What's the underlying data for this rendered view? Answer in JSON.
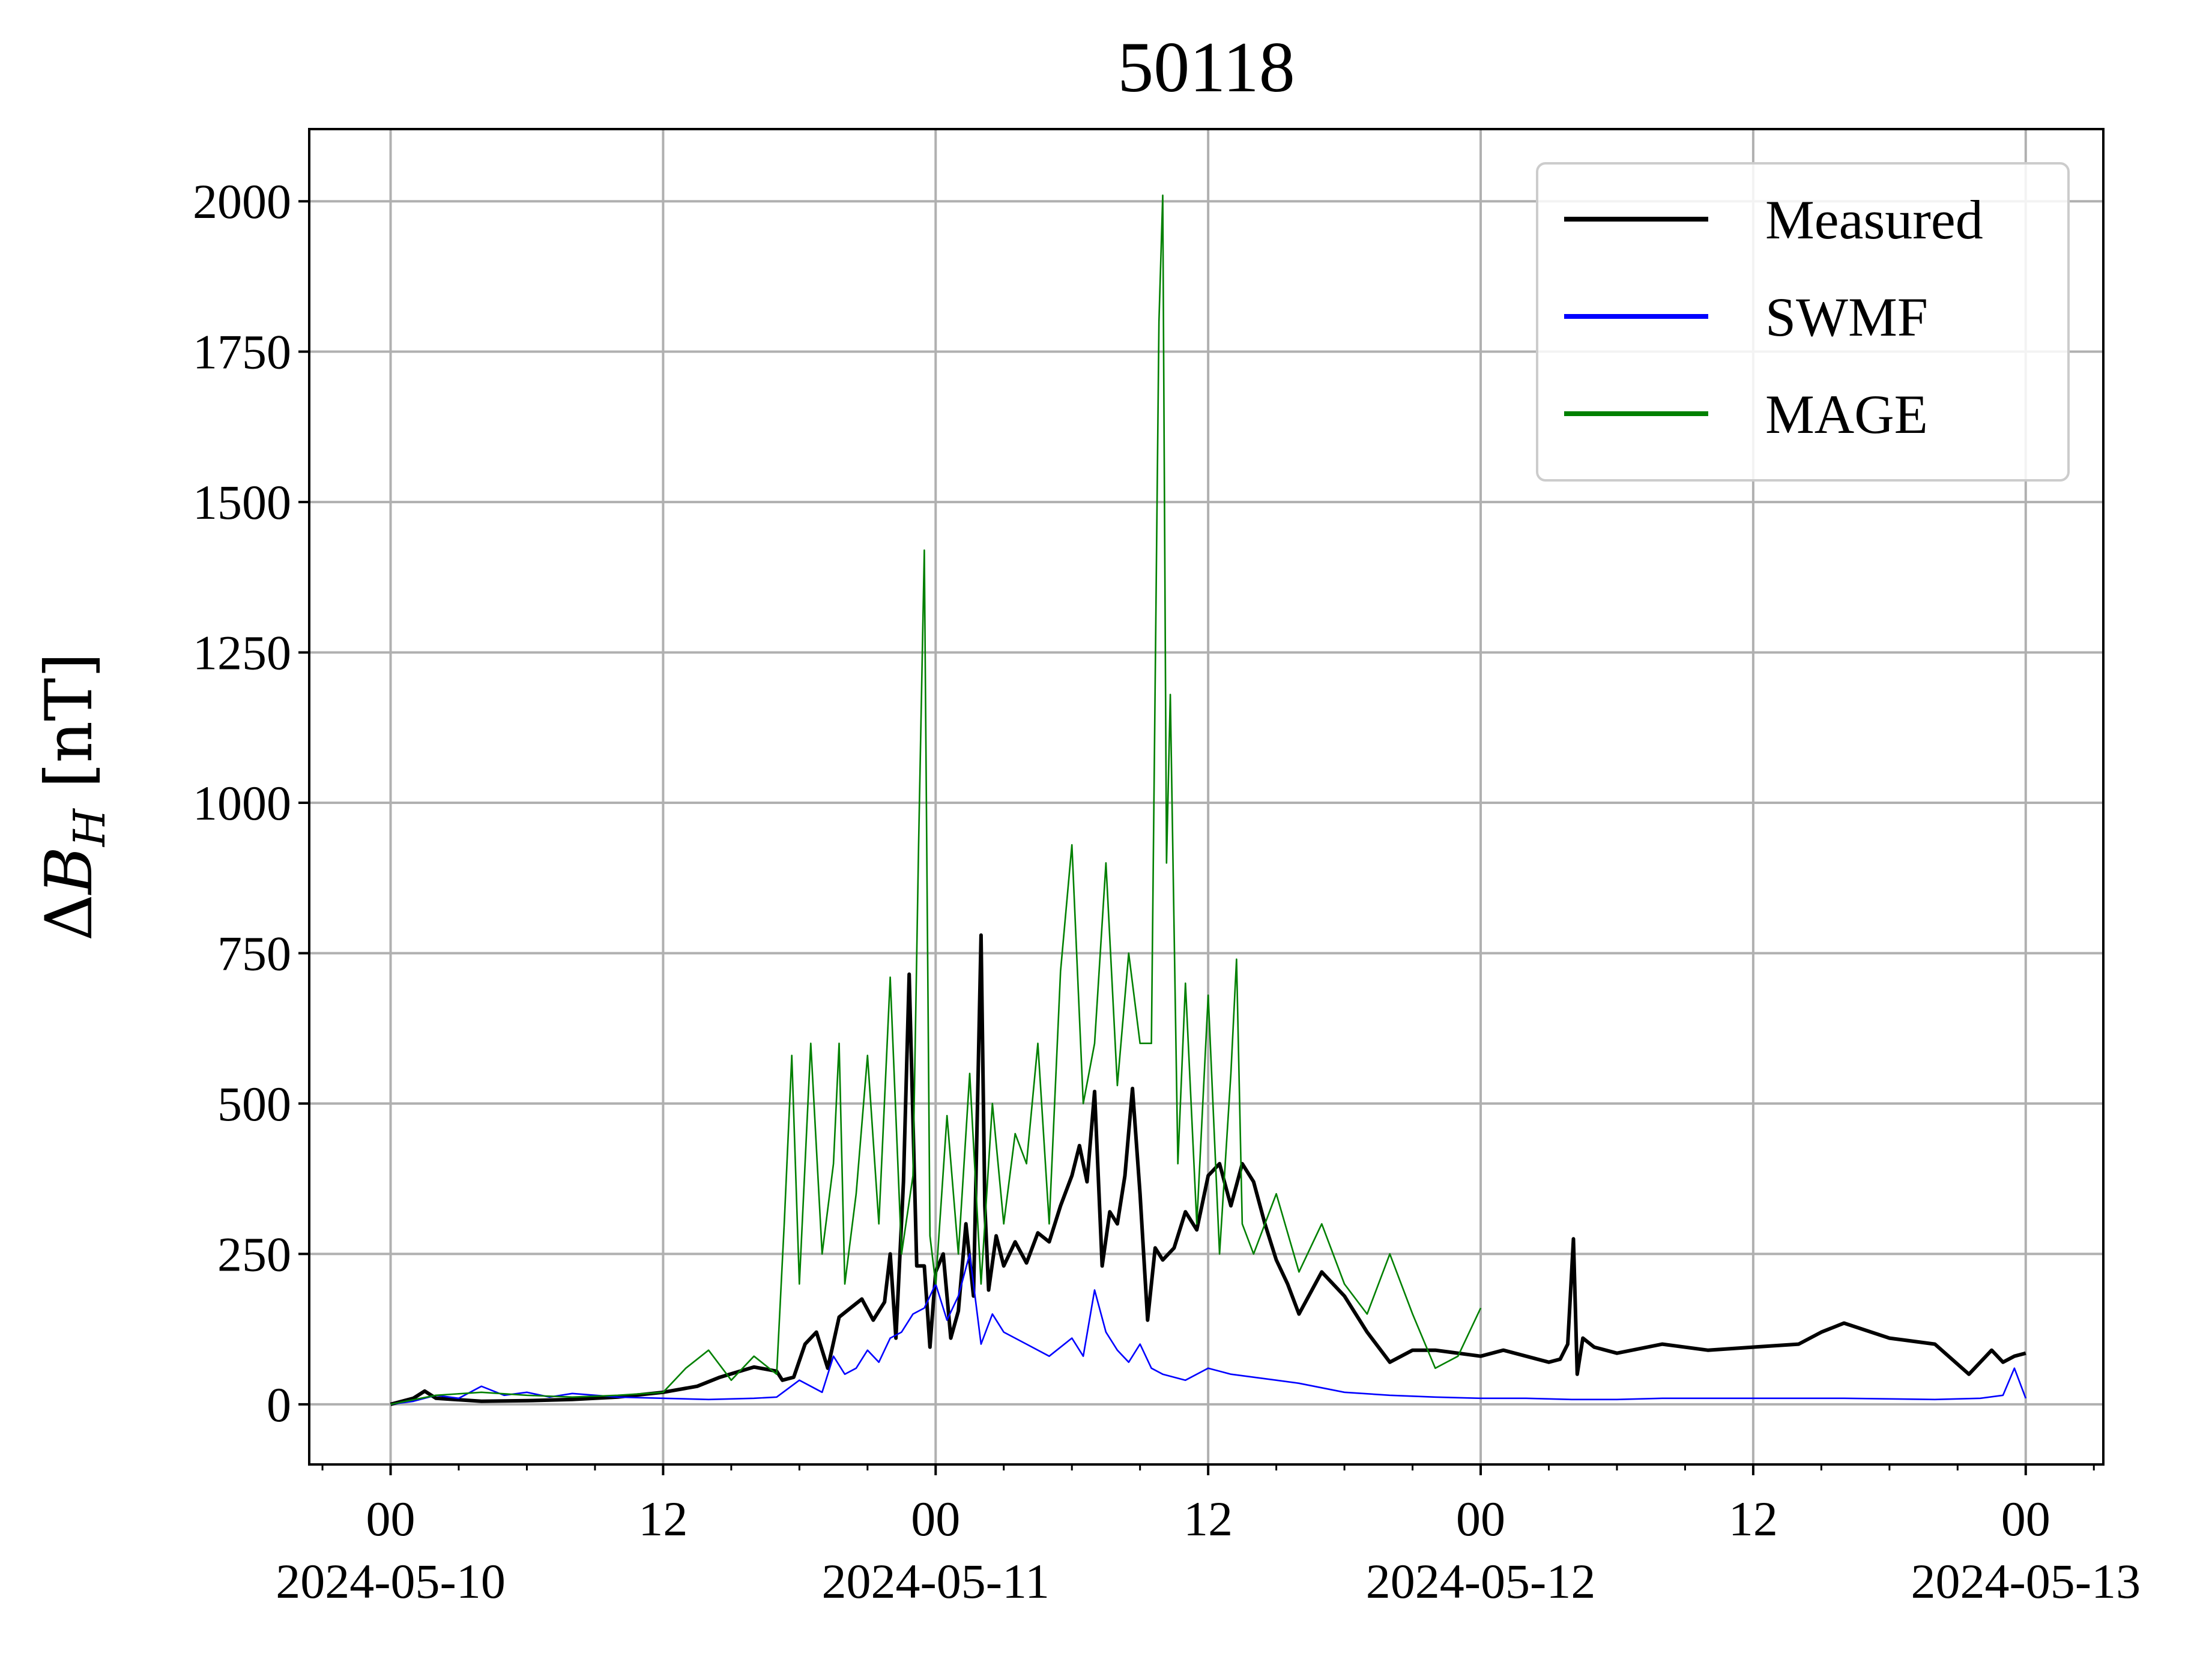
{
  "chart_data": {
    "type": "line",
    "title": "50118",
    "ylabel": "ΔB_H [nT]",
    "ylabel_parts": {
      "delta": "Δ",
      "var": "B",
      "sub": "H",
      "unit": " [nT]"
    },
    "xlabel": "",
    "x_range": [
      "2024-05-09T20:25",
      "2024-05-13T03:25"
    ],
    "ylim": [
      -100,
      2120
    ],
    "yticks": [
      0,
      250,
      500,
      750,
      1000,
      1250,
      1500,
      1750,
      2000
    ],
    "xticks": [
      {
        "time": "2024-05-10T00:00",
        "label1": "00",
        "label2": "2024-05-10"
      },
      {
        "time": "2024-05-10T12:00",
        "label1": "12",
        "label2": ""
      },
      {
        "time": "2024-05-11T00:00",
        "label1": "00",
        "label2": "2024-05-11"
      },
      {
        "time": "2024-05-11T12:00",
        "label1": "12",
        "label2": ""
      },
      {
        "time": "2024-05-12T00:00",
        "label1": "00",
        "label2": "2024-05-12"
      },
      {
        "time": "2024-05-12T12:00",
        "label1": "12",
        "label2": ""
      },
      {
        "time": "2024-05-13T00:00",
        "label1": "00",
        "label2": "2024-05-13"
      }
    ],
    "minor_tick_interval_hours": 3,
    "grid": true,
    "legend_position": "top-right",
    "series": [
      {
        "name": "Measured",
        "color": "#000000",
        "stroke": "thick",
        "x": [
          "2024-05-10T00:00",
          "2024-05-10T01:00",
          "2024-05-10T01:30",
          "2024-05-10T02:00",
          "2024-05-10T04:00",
          "2024-05-10T06:00",
          "2024-05-10T08:00",
          "2024-05-10T10:00",
          "2024-05-10T12:00",
          "2024-05-10T13:30",
          "2024-05-10T14:30",
          "2024-05-10T16:00",
          "2024-05-10T17:00",
          "2024-05-10T17:15",
          "2024-05-10T17:45",
          "2024-05-10T18:15",
          "2024-05-10T18:45",
          "2024-05-10T19:15",
          "2024-05-10T19:45",
          "2024-05-10T20:15",
          "2024-05-10T20:45",
          "2024-05-10T21:15",
          "2024-05-10T21:45",
          "2024-05-10T22:00",
          "2024-05-10T22:15",
          "2024-05-10T22:35",
          "2024-05-10T22:50",
          "2024-05-10T23:10",
          "2024-05-10T23:30",
          "2024-05-10T23:45",
          "2024-05-11T00:00",
          "2024-05-11T00:20",
          "2024-05-11T00:40",
          "2024-05-11T01:00",
          "2024-05-11T01:20",
          "2024-05-11T01:40",
          "2024-05-11T02:00",
          "2024-05-11T02:10",
          "2024-05-11T02:20",
          "2024-05-11T02:40",
          "2024-05-11T03:00",
          "2024-05-11T03:30",
          "2024-05-11T04:00",
          "2024-05-11T04:30",
          "2024-05-11T05:00",
          "2024-05-11T05:30",
          "2024-05-11T06:00",
          "2024-05-11T06:20",
          "2024-05-11T06:40",
          "2024-05-11T07:00",
          "2024-05-11T07:20",
          "2024-05-11T07:40",
          "2024-05-11T08:00",
          "2024-05-11T08:20",
          "2024-05-11T08:40",
          "2024-05-11T09:00",
          "2024-05-11T09:20",
          "2024-05-11T09:40",
          "2024-05-11T10:00",
          "2024-05-11T10:30",
          "2024-05-11T11:00",
          "2024-05-11T11:30",
          "2024-05-11T12:00",
          "2024-05-11T12:30",
          "2024-05-11T13:00",
          "2024-05-11T13:30",
          "2024-05-11T14:00",
          "2024-05-11T14:30",
          "2024-05-11T15:00",
          "2024-05-11T15:30",
          "2024-05-11T16:00",
          "2024-05-11T17:00",
          "2024-05-11T18:00",
          "2024-05-11T19:00",
          "2024-05-11T20:00",
          "2024-05-11T21:00",
          "2024-05-11T22:00",
          "2024-05-11T23:00",
          "2024-05-12T00:00",
          "2024-05-12T01:00",
          "2024-05-12T02:00",
          "2024-05-12T03:00",
          "2024-05-12T03:30",
          "2024-05-12T03:50",
          "2024-05-12T04:05",
          "2024-05-12T04:15",
          "2024-05-12T04:30",
          "2024-05-12T05:00",
          "2024-05-12T06:00",
          "2024-05-12T08:00",
          "2024-05-12T10:00",
          "2024-05-12T12:00",
          "2024-05-12T14:00",
          "2024-05-12T15:00",
          "2024-05-12T16:00",
          "2024-05-12T18:00",
          "2024-05-12T20:00",
          "2024-05-12T21:30",
          "2024-05-12T22:30",
          "2024-05-12T23:00",
          "2024-05-12T23:30",
          "2024-05-13T00:00"
        ],
        "y": [
          0,
          10,
          22,
          10,
          5,
          6,
          8,
          12,
          20,
          30,
          45,
          62,
          55,
          40,
          45,
          100,
          120,
          60,
          145,
          160,
          175,
          140,
          170,
          250,
          110,
          370,
          715,
          230,
          230,
          95,
          220,
          250,
          110,
          155,
          300,
          180,
          780,
          330,
          190,
          280,
          230,
          270,
          235,
          285,
          270,
          330,
          380,
          430,
          370,
          520,
          230,
          320,
          300,
          380,
          525,
          350,
          140,
          260,
          240,
          260,
          320,
          290,
          380,
          400,
          330,
          400,
          370,
          300,
          240,
          200,
          150,
          220,
          180,
          120,
          70,
          90,
          90,
          85,
          80,
          90,
          80,
          70,
          75,
          100,
          275,
          50,
          110,
          95,
          85,
          100,
          90,
          95,
          100,
          120,
          135,
          110,
          100,
          50,
          90,
          70,
          80,
          85
        ]
      },
      {
        "name": "SWMF",
        "color": "#0000ff",
        "stroke": "thin",
        "x": [
          "2024-05-10T00:00",
          "2024-05-10T01:00",
          "2024-05-10T02:00",
          "2024-05-10T03:00",
          "2024-05-10T04:00",
          "2024-05-10T05:00",
          "2024-05-10T06:00",
          "2024-05-10T07:00",
          "2024-05-10T08:00",
          "2024-05-10T10:00",
          "2024-05-10T12:00",
          "2024-05-10T14:00",
          "2024-05-10T16:00",
          "2024-05-10T17:00",
          "2024-05-10T18:00",
          "2024-05-10T19:00",
          "2024-05-10T19:30",
          "2024-05-10T20:00",
          "2024-05-10T20:30",
          "2024-05-10T21:00",
          "2024-05-10T21:30",
          "2024-05-10T22:00",
          "2024-05-10T22:30",
          "2024-05-10T23:00",
          "2024-05-10T23:30",
          "2024-05-11T00:00",
          "2024-05-11T00:30",
          "2024-05-11T01:00",
          "2024-05-11T01:30",
          "2024-05-11T02:00",
          "2024-05-11T02:30",
          "2024-05-11T03:00",
          "2024-05-11T04:00",
          "2024-05-11T05:00",
          "2024-05-11T06:00",
          "2024-05-11T06:30",
          "2024-05-11T07:00",
          "2024-05-11T07:30",
          "2024-05-11T08:00",
          "2024-05-11T08:30",
          "2024-05-11T09:00",
          "2024-05-11T09:30",
          "2024-05-11T10:00",
          "2024-05-11T11:00",
          "2024-05-11T12:00",
          "2024-05-11T13:00",
          "2024-05-11T14:00",
          "2024-05-11T15:00",
          "2024-05-11T16:00",
          "2024-05-11T18:00",
          "2024-05-11T20:00",
          "2024-05-11T22:00",
          "2024-05-12T00:00",
          "2024-05-12T02:00",
          "2024-05-12T04:00",
          "2024-05-12T06:00",
          "2024-05-12T08:00",
          "2024-05-12T12:00",
          "2024-05-12T16:00",
          "2024-05-12T20:00",
          "2024-05-12T22:00",
          "2024-05-12T23:00",
          "2024-05-12T23:30",
          "2024-05-13T00:00"
        ],
        "y": [
          0,
          5,
          15,
          10,
          30,
          15,
          20,
          12,
          18,
          12,
          10,
          8,
          10,
          12,
          40,
          20,
          80,
          50,
          60,
          90,
          70,
          110,
          120,
          150,
          160,
          200,
          140,
          180,
          250,
          100,
          150,
          120,
          100,
          80,
          110,
          80,
          190,
          120,
          90,
          70,
          100,
          60,
          50,
          40,
          60,
          50,
          45,
          40,
          35,
          20,
          15,
          12,
          10,
          10,
          8,
          8,
          10,
          10,
          10,
          8,
          10,
          15,
          60,
          10
        ]
      },
      {
        "name": "MAGE",
        "color": "#008000",
        "stroke": "thin",
        "x": [
          "2024-05-10T00:00",
          "2024-05-10T02:00",
          "2024-05-10T04:00",
          "2024-05-10T06:00",
          "2024-05-10T08:00",
          "2024-05-10T10:00",
          "2024-05-10T12:00",
          "2024-05-10T13:00",
          "2024-05-10T14:00",
          "2024-05-10T15:00",
          "2024-05-10T16:00",
          "2024-05-10T17:00",
          "2024-05-10T17:20",
          "2024-05-10T17:40",
          "2024-05-10T18:00",
          "2024-05-10T18:30",
          "2024-05-10T19:00",
          "2024-05-10T19:30",
          "2024-05-10T19:45",
          "2024-05-10T20:00",
          "2024-05-10T20:30",
          "2024-05-10T21:00",
          "2024-05-10T21:30",
          "2024-05-10T22:00",
          "2024-05-10T22:30",
          "2024-05-10T23:00",
          "2024-05-10T23:15",
          "2024-05-10T23:30",
          "2024-05-10T23:45",
          "2024-05-11T00:00",
          "2024-05-11T00:30",
          "2024-05-11T01:00",
          "2024-05-11T01:30",
          "2024-05-11T02:00",
          "2024-05-11T02:30",
          "2024-05-11T03:00",
          "2024-05-11T03:30",
          "2024-05-11T04:00",
          "2024-05-11T04:30",
          "2024-05-11T05:00",
          "2024-05-11T05:30",
          "2024-05-11T06:00",
          "2024-05-11T06:30",
          "2024-05-11T07:00",
          "2024-05-11T07:30",
          "2024-05-11T08:00",
          "2024-05-11T08:30",
          "2024-05-11T09:00",
          "2024-05-11T09:30",
          "2024-05-11T09:50",
          "2024-05-11T10:00",
          "2024-05-11T10:10",
          "2024-05-11T10:20",
          "2024-05-11T10:40",
          "2024-05-11T11:00",
          "2024-05-11T11:30",
          "2024-05-11T12:00",
          "2024-05-11T12:30",
          "2024-05-11T13:00",
          "2024-05-11T13:15",
          "2024-05-11T13:30",
          "2024-05-11T14:00",
          "2024-05-11T15:00",
          "2024-05-11T16:00",
          "2024-05-11T17:00",
          "2024-05-11T18:00",
          "2024-05-11T19:00",
          "2024-05-11T20:00",
          "2024-05-11T21:00",
          "2024-05-11T22:00",
          "2024-05-11T23:00",
          "2024-05-12T00:00"
        ],
        "y": [
          0,
          15,
          20,
          15,
          12,
          15,
          20,
          60,
          90,
          40,
          80,
          50,
          300,
          580,
          200,
          600,
          250,
          400,
          600,
          200,
          350,
          580,
          300,
          710,
          250,
          380,
          930,
          1420,
          280,
          200,
          480,
          250,
          550,
          200,
          500,
          300,
          450,
          400,
          600,
          300,
          720,
          930,
          500,
          600,
          900,
          530,
          750,
          600,
          600,
          1800,
          2010,
          900,
          1180,
          400,
          700,
          300,
          680,
          250,
          550,
          740,
          300,
          250,
          350,
          220,
          300,
          200,
          150,
          250,
          150,
          60,
          80,
          160
        ]
      }
    ]
  }
}
